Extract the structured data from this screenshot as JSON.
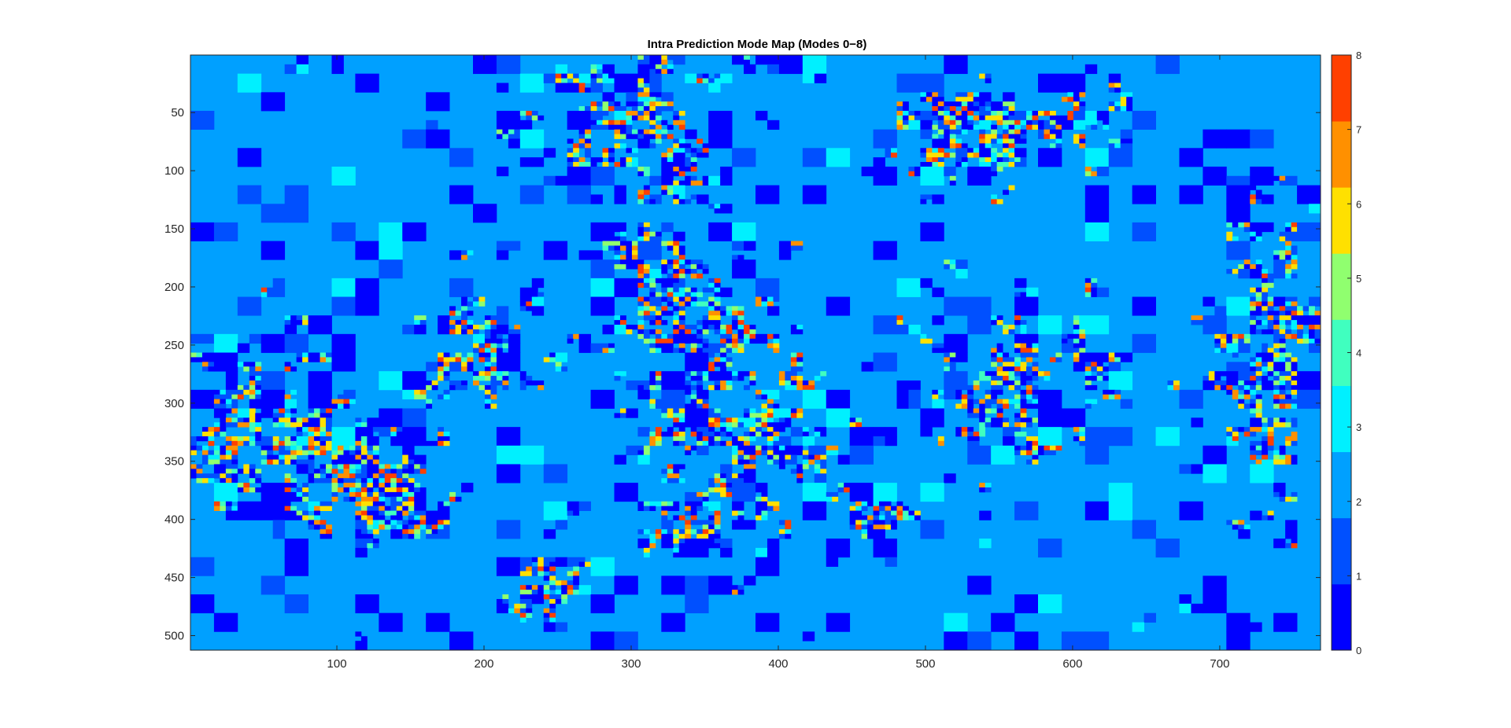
{
  "chart_data": {
    "type": "heatmap",
    "title": "Intra Prediction Mode Map (Modes 0−8)",
    "xlabel": "",
    "ylabel": "",
    "xlim": [
      0.5,
      768.5
    ],
    "ylim": [
      0.5,
      512.5
    ],
    "y_direction": "reverse",
    "xticks": [
      100,
      200,
      300,
      400,
      500,
      600,
      700
    ],
    "yticks": [
      50,
      100,
      150,
      200,
      250,
      300,
      350,
      400,
      450,
      500
    ],
    "colormap": {
      "name": "jet",
      "levels": [
        0,
        1,
        2,
        3,
        4,
        5,
        6,
        7,
        8
      ],
      "colors": [
        "#0000ff",
        "#0050ff",
        "#00a0ff",
        "#00f0ff",
        "#40ffbf",
        "#90ff6f",
        "#ffe000",
        "#ff9000",
        "#ff4000"
      ]
    },
    "colorbar": {
      "ticks": [
        0,
        1,
        2,
        3,
        4,
        5,
        6,
        7,
        8
      ],
      "labels": [
        "0",
        "1",
        "2",
        "3",
        "4",
        "5",
        "6",
        "7",
        "8"
      ]
    },
    "block_sizes": [
      32,
      16,
      8,
      4
    ],
    "dominant_mode": 2,
    "block_layout": "irregular mosaic of 32x32 / 16x16 / 8x8 blocks, mostly mode 2 background with scattered mode 0/1 blocks and fine-grained textured regions containing modes 0-8"
  }
}
